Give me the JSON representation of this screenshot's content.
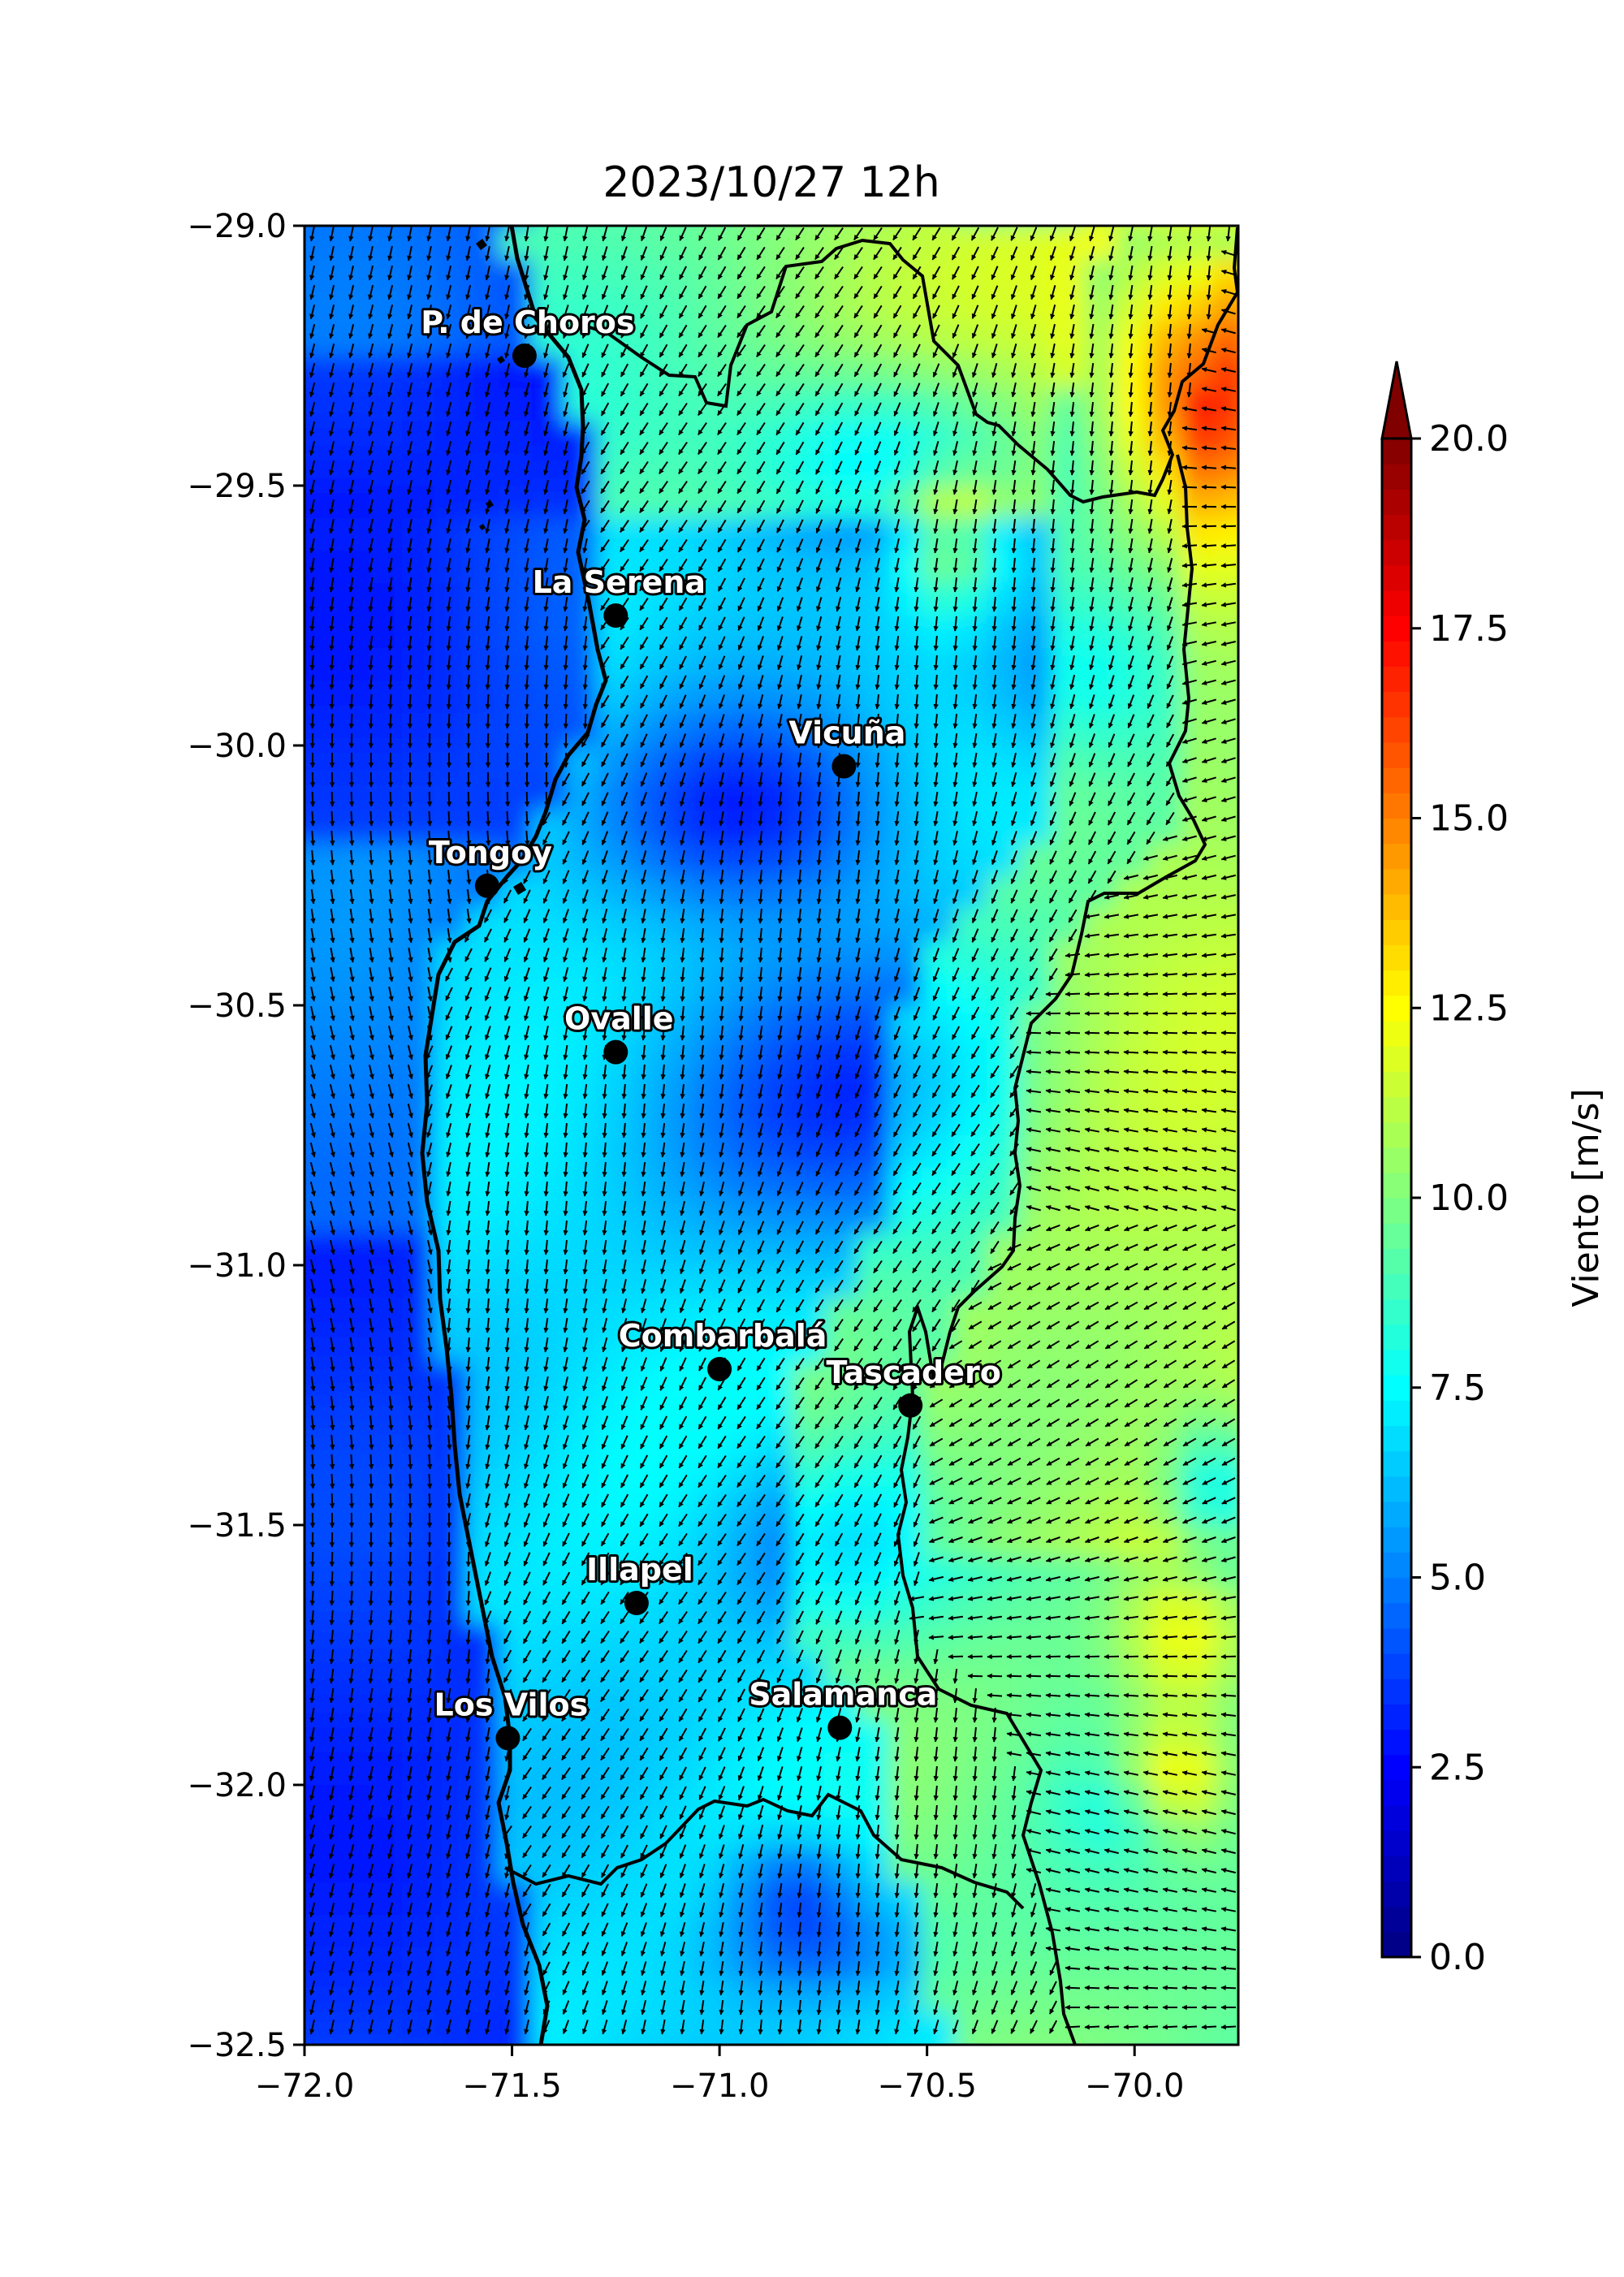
{
  "title": "2023/10/27 12h",
  "map": {
    "lon_range": [
      -72.0,
      -69.75
    ],
    "lat_range": [
      -32.5,
      -29.0
    ],
    "x_ticks": [
      {
        "value": -72.0,
        "label": "−72.0"
      },
      {
        "value": -71.5,
        "label": "−71.5"
      },
      {
        "value": -71.0,
        "label": "−71.0"
      },
      {
        "value": -70.5,
        "label": "−70.5"
      },
      {
        "value": -70.0,
        "label": "−70.0"
      }
    ],
    "y_ticks": [
      {
        "value": -29.0,
        "label": "−29.0"
      },
      {
        "value": -29.5,
        "label": "−29.5"
      },
      {
        "value": -30.0,
        "label": "−30.0"
      },
      {
        "value": -30.5,
        "label": "−30.5"
      },
      {
        "value": -31.0,
        "label": "−31.0"
      },
      {
        "value": -31.5,
        "label": "−31.5"
      },
      {
        "value": -32.0,
        "label": "−32.0"
      },
      {
        "value": -32.5,
        "label": "−32.5"
      }
    ],
    "cities": [
      {
        "name": "P. de Choros",
        "lon": -71.47,
        "lat": -29.25
      },
      {
        "name": "La Serena",
        "lon": -71.25,
        "lat": -29.75
      },
      {
        "name": "Vicuña",
        "lon": -70.7,
        "lat": -30.04
      },
      {
        "name": "Tongoy",
        "lon": -71.56,
        "lat": -30.27
      },
      {
        "name": "Ovalle",
        "lon": -71.25,
        "lat": -30.59
      },
      {
        "name": "Combarbalá",
        "lon": -71.0,
        "lat": -31.2
      },
      {
        "name": "Tascadero",
        "lon": -70.54,
        "lat": -31.27
      },
      {
        "name": "Illapel",
        "lon": -71.2,
        "lat": -31.65
      },
      {
        "name": "Salamanca",
        "lon": -70.71,
        "lat": -31.89
      },
      {
        "name": "Los Vilos",
        "lon": -71.51,
        "lat": -31.91
      }
    ]
  },
  "colorbar": {
    "label": "Viento [m/s]",
    "range": [
      0.0,
      20.0
    ],
    "extend": "max",
    "colormap": "jet",
    "ticks": [
      {
        "value": 0.0,
        "label": "0.0"
      },
      {
        "value": 2.5,
        "label": "2.5"
      },
      {
        "value": 5.0,
        "label": "5.0"
      },
      {
        "value": 7.5,
        "label": "7.5"
      },
      {
        "value": 10.0,
        "label": "10.0"
      },
      {
        "value": 12.5,
        "label": "12.5"
      },
      {
        "value": 15.0,
        "label": "15.0"
      },
      {
        "value": 17.5,
        "label": "17.5"
      },
      {
        "value": 20.0,
        "label": "20.0"
      }
    ]
  }
}
